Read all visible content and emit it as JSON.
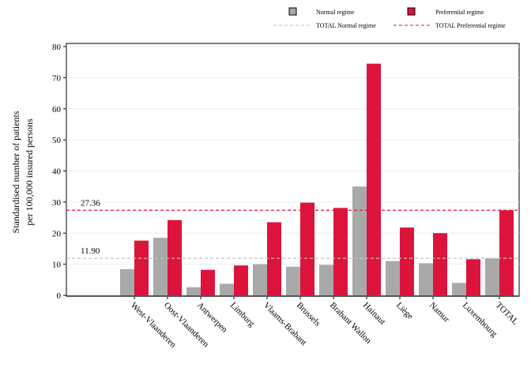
{
  "chart_data": {
    "type": "bar",
    "ylabel": "Standardised number of patients per 100,000 insured persons",
    "ylabel_lines": [
      "Standardised number of patients",
      "per 100,000 insured persons"
    ],
    "ylim": [
      0,
      80
    ],
    "yticks": [
      0,
      10,
      20,
      30,
      40,
      50,
      60,
      70,
      80
    ],
    "grid": "horizontal",
    "legend_position": "top-right",
    "categories": [
      "West-Vlaanderen",
      "Oost-Vlaanderen",
      "Antwerpen",
      "Limburg",
      "Vlaams-Brabant",
      "Brussels",
      "Brabant Wallon",
      "Hainaut",
      "Liège",
      "Namur",
      "Luxembourg",
      "TOTAL"
    ],
    "series": [
      {
        "name": "Normal regime",
        "color": "#a9a9a9",
        "values": [
          8.4,
          18.5,
          2.6,
          3.7,
          10.0,
          9.2,
          9.8,
          35.0,
          11.0,
          10.3,
          4.0,
          11.9
        ]
      },
      {
        "name": "Preferential regime",
        "color": "#dc143c",
        "values": [
          17.6,
          24.2,
          8.2,
          9.6,
          23.5,
          29.8,
          28.1,
          74.5,
          21.8,
          20.0,
          11.6,
          27.36
        ]
      }
    ],
    "reference_lines": [
      {
        "name": "TOTAL Normal regime",
        "value": 11.9,
        "label": "11.90",
        "color": "#c0c0c0",
        "style": "dashed"
      },
      {
        "name": "TOTAL Preferential regime",
        "value": 27.36,
        "label": "27.36",
        "color": "#dc143c",
        "style": "dashed"
      }
    ]
  }
}
